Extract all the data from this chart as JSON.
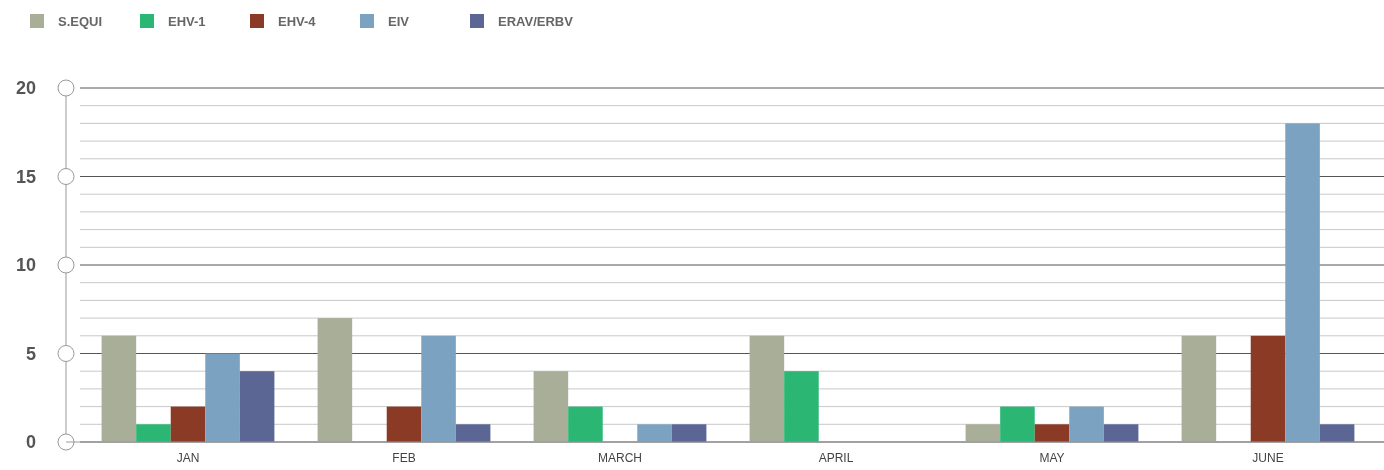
{
  "chart_data": {
    "type": "bar",
    "categories": [
      "JAN",
      "FEB",
      "MARCH",
      "APRIL",
      "MAY",
      "JUNE"
    ],
    "series": [
      {
        "name": "S.EQUI",
        "color": "#a9ae98",
        "values": [
          6,
          7,
          4,
          6,
          1,
          6
        ]
      },
      {
        "name": "EHV-1",
        "color": "#2bb673",
        "values": [
          1,
          0,
          2,
          4,
          2,
          0
        ]
      },
      {
        "name": "EHV-4",
        "color": "#8b3b25",
        "values": [
          2,
          2,
          0,
          0,
          1,
          6
        ]
      },
      {
        "name": "EIV",
        "color": "#7ba3c1",
        "values": [
          5,
          6,
          1,
          0,
          2,
          18
        ]
      },
      {
        "name": "ERAV/ERBV",
        "color": "#5c6694",
        "values": [
          4,
          1,
          1,
          0,
          1,
          1
        ]
      }
    ],
    "ylim": [
      0,
      20
    ],
    "yticks": [
      0,
      {
        "value": 1,
        "label": null
      },
      {
        "value": 2,
        "label": null
      },
      {
        "value": 3,
        "label": null
      },
      {
        "value": 4,
        "label": null
      },
      5,
      {
        "value": 6,
        "label": null
      },
      {
        "value": 7,
        "label": null
      },
      {
        "value": 8,
        "label": null
      },
      {
        "value": 9,
        "label": null
      },
      10,
      {
        "value": 11,
        "label": null
      },
      {
        "value": 12,
        "label": null
      },
      {
        "value": 13,
        "label": null
      },
      {
        "value": 14,
        "label": null
      },
      15,
      {
        "value": 16,
        "label": null
      },
      {
        "value": 17,
        "label": null
      },
      {
        "value": 18,
        "label": null
      },
      {
        "value": 19,
        "label": null
      },
      20
    ],
    "grid": "y",
    "legend": "top left"
  }
}
